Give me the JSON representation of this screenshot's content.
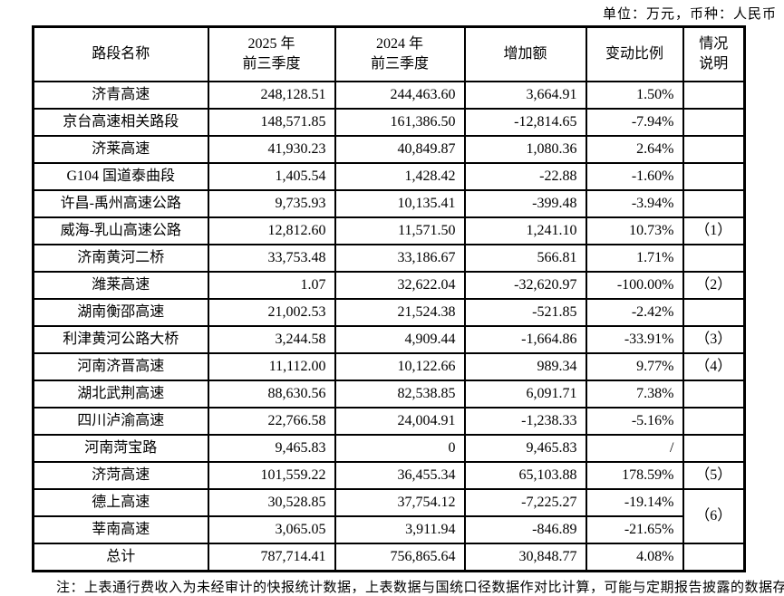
{
  "unit_note": "单位：万元，币种：人民币",
  "table": {
    "headers": {
      "road": "路段名称",
      "y2025_l1": "2025 年",
      "y2025_l2": "前三季度",
      "y2024_l1": "2024 年",
      "y2024_l2": "前三季度",
      "change": "增加额",
      "pct": "变动比例",
      "note_l1": "情况",
      "note_l2": "说明"
    },
    "rows": [
      {
        "name": "济青高速",
        "y2025": "248,128.51",
        "y2024": "244,463.60",
        "change": "3,664.91",
        "pct": "1.50%",
        "note": ""
      },
      {
        "name": "京台高速相关路段",
        "y2025": "148,571.85",
        "y2024": "161,386.50",
        "change": "-12,814.65",
        "pct": "-7.94%",
        "note": ""
      },
      {
        "name": "济莱高速",
        "y2025": "41,930.23",
        "y2024": "40,849.87",
        "change": "1,080.36",
        "pct": "2.64%",
        "note": ""
      },
      {
        "name": "G104 国道泰曲段",
        "y2025": "1,405.54",
        "y2024": "1,428.42",
        "change": "-22.88",
        "pct": "-1.60%",
        "note": ""
      },
      {
        "name": "许昌-禹州高速公路",
        "y2025": "9,735.93",
        "y2024": "10,135.41",
        "change": "-399.48",
        "pct": "-3.94%",
        "note": ""
      },
      {
        "name": "威海-乳山高速公路",
        "y2025": "12,812.60",
        "y2024": "11,571.50",
        "change": "1,241.10",
        "pct": "10.73%",
        "note": "（1）"
      },
      {
        "name": "济南黄河二桥",
        "y2025": "33,753.48",
        "y2024": "33,186.67",
        "change": "566.81",
        "pct": "1.71%",
        "note": ""
      },
      {
        "name": "潍莱高速",
        "y2025": "1.07",
        "y2024": "32,622.04",
        "change": "-32,620.97",
        "pct": "-100.00%",
        "note": "（2）"
      },
      {
        "name": "湖南衡邵高速",
        "y2025": "21,002.53",
        "y2024": "21,524.38",
        "change": "-521.85",
        "pct": "-2.42%",
        "note": ""
      },
      {
        "name": "利津黄河公路大桥",
        "y2025": "3,244.58",
        "y2024": "4,909.44",
        "change": "-1,664.86",
        "pct": "-33.91%",
        "note": "（3）"
      },
      {
        "name": "河南济晋高速",
        "y2025": "11,112.00",
        "y2024": "10,122.66",
        "change": "989.34",
        "pct": "9.77%",
        "note": "（4）"
      },
      {
        "name": "湖北武荆高速",
        "y2025": "88,630.56",
        "y2024": "82,538.85",
        "change": "6,091.71",
        "pct": "7.38%",
        "note": ""
      },
      {
        "name": "四川泸渝高速",
        "y2025": "22,766.58",
        "y2024": "24,004.91",
        "change": "-1,238.33",
        "pct": "-5.16%",
        "note": ""
      },
      {
        "name": "河南菏宝路",
        "y2025": "9,465.83",
        "y2024": "0",
        "change": "9,465.83",
        "pct": "/",
        "note": ""
      },
      {
        "name": "济菏高速",
        "y2025": "101,559.22",
        "y2024": "36,455.34",
        "change": "65,103.88",
        "pct": "178.59%",
        "note": "（5）"
      },
      {
        "name": "德上高速",
        "y2025": "30,528.85",
        "y2024": "37,754.12",
        "change": "-7,225.27",
        "pct": "-19.14%",
        "note": "（6）"
      },
      {
        "name": "莘南高速",
        "y2025": "3,065.05",
        "y2024": "3,911.94",
        "change": "-846.89",
        "pct": "-21.65%",
        "note": ""
      },
      {
        "name": "总计",
        "y2025": "787,714.41",
        "y2024": "756,865.64",
        "change": "30,848.77",
        "pct": "4.08%",
        "note": ""
      }
    ]
  },
  "footnote": "注：上表通行费收入为未经审计的快报统计数据，上表数据与国统口径数据作对比计算，可能与定期报告披露的数据存在差异。"
}
